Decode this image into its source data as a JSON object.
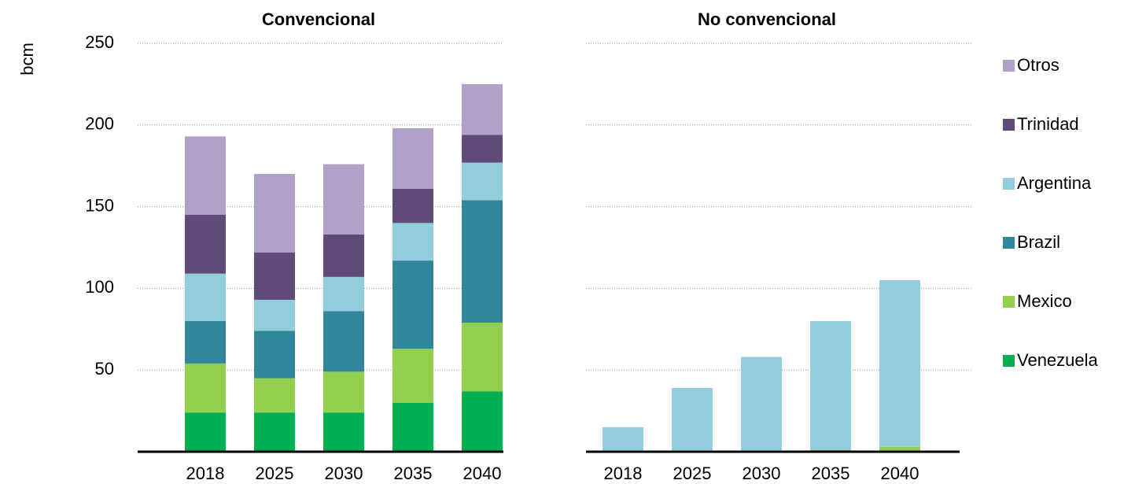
{
  "chart_data": [
    {
      "type": "bar",
      "stacked": true,
      "title": "Convencional",
      "y_label": "bcm",
      "categories": [
        "2018",
        "2025",
        "2030",
        "2035",
        "2040"
      ],
      "series": [
        {
          "name": "Venezuela",
          "color": "#00b050",
          "values": [
            24,
            24,
            24,
            30,
            37
          ]
        },
        {
          "name": "Mexico",
          "color": "#92d050",
          "values": [
            30,
            21,
            25,
            33,
            42
          ]
        },
        {
          "name": "Brazil",
          "color": "#31869b",
          "values": [
            26,
            29,
            37,
            54,
            75
          ]
        },
        {
          "name": "Argentina",
          "color": "#92cddc",
          "values": [
            29,
            19,
            21,
            23,
            23
          ]
        },
        {
          "name": "Trinidad",
          "color": "#604a7b",
          "values": [
            36,
            29,
            26,
            21,
            17
          ]
        },
        {
          "name": "Otros",
          "color": "#b1a0c7",
          "values": [
            48,
            48,
            43,
            37,
            31
          ]
        }
      ],
      "ylim": [
        0,
        250
      ],
      "yticks": [
        50,
        100,
        150,
        200,
        250
      ],
      "grid": true
    },
    {
      "type": "bar",
      "stacked": true,
      "title": "No convencional",
      "categories": [
        "2018",
        "2025",
        "2030",
        "2035",
        "2040"
      ],
      "series": [
        {
          "name": "Venezuela",
          "color": "#00b050",
          "values": [
            0,
            0,
            0,
            0,
            0
          ]
        },
        {
          "name": "Mexico",
          "color": "#92d050",
          "values": [
            0,
            0,
            0,
            1,
            3
          ]
        },
        {
          "name": "Brazil",
          "color": "#31869b",
          "values": [
            0,
            0,
            0,
            0,
            0
          ]
        },
        {
          "name": "Argentina",
          "color": "#92cddc",
          "values": [
            15,
            39,
            58,
            79,
            102
          ]
        },
        {
          "name": "Trinidad",
          "color": "#604a7b",
          "values": [
            0,
            0,
            0,
            0,
            0
          ]
        },
        {
          "name": "Otros",
          "color": "#b1a0c7",
          "values": [
            0,
            0,
            0,
            0,
            0
          ]
        }
      ],
      "ylim": [
        0,
        250
      ],
      "yticks": [
        50,
        100,
        150,
        200,
        250
      ],
      "grid": true
    }
  ]
}
